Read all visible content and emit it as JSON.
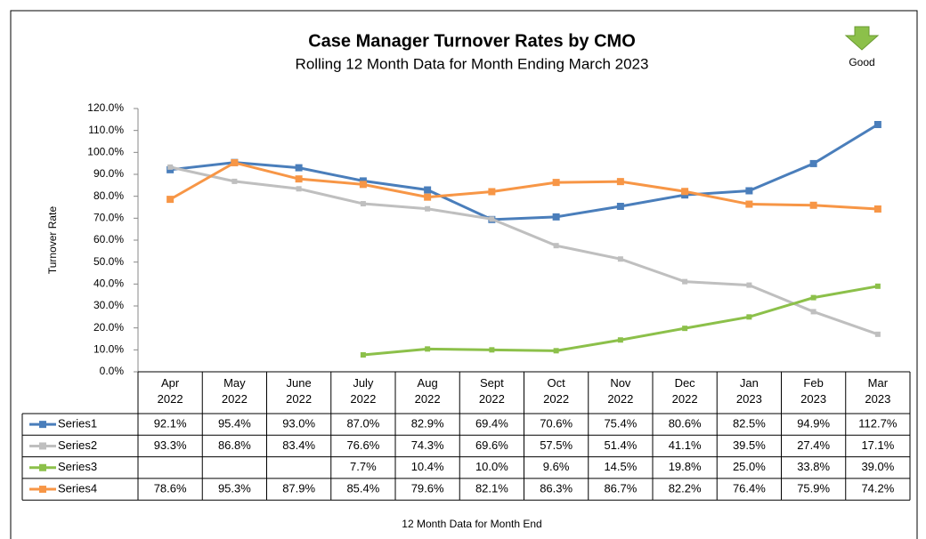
{
  "chart_data": {
    "type": "line",
    "title": "Case Manager Turnover Rates by CMO",
    "subtitle": "Rolling 12 Month Data for Month Ending March 2023",
    "annotation": "Good",
    "y_label": "Turnover Rate",
    "x_label": "12 Month Data for Month End",
    "categories": [
      "Apr\n2022",
      "May\n2022",
      "June\n2022",
      "July\n2022",
      "Aug\n2022",
      "Sept\n2022",
      "Oct\n2022",
      "Nov\n2022",
      "Dec\n2022",
      "Jan\n2023",
      "Feb\n2023",
      "Mar\n2023"
    ],
    "ylim": [
      0,
      120
    ],
    "yticks": [
      {
        "value": 0,
        "label": "0.0%"
      },
      {
        "value": 10,
        "label": "10.0%"
      },
      {
        "value": 20,
        "label": "20.0%"
      },
      {
        "value": 30,
        "label": "30.0%"
      },
      {
        "value": 40,
        "label": "40.0%"
      },
      {
        "value": 50,
        "label": "50.0%"
      },
      {
        "value": 60,
        "label": "60.0%"
      },
      {
        "value": 70,
        "label": "70.0%"
      },
      {
        "value": 80,
        "label": "80.0%"
      },
      {
        "value": 90,
        "label": "90.0%"
      },
      {
        "value": 100,
        "label": "100.0%"
      },
      {
        "value": 110,
        "label": "110.0%"
      },
      {
        "value": 120,
        "label": "120.0%"
      }
    ],
    "grid": false,
    "series": [
      {
        "name": "Series1",
        "color": "#4a7ebb",
        "values": [
          92.1,
          95.4,
          93.0,
          87.0,
          82.9,
          69.4,
          70.6,
          75.4,
          80.6,
          82.5,
          94.9,
          112.7
        ],
        "value_labels": [
          "92.1%",
          "95.4%",
          "93.0%",
          "87.0%",
          "82.9%",
          "69.4%",
          "70.6%",
          "75.4%",
          "80.6%",
          "82.5%",
          "94.9%",
          "112.7%"
        ]
      },
      {
        "name": "Series2",
        "color": "#bfbfbf",
        "values": [
          93.3,
          86.8,
          83.4,
          76.6,
          74.3,
          69.6,
          57.5,
          51.4,
          41.1,
          39.5,
          27.4,
          17.1
        ],
        "value_labels": [
          "93.3%",
          "86.8%",
          "83.4%",
          "76.6%",
          "74.3%",
          "69.6%",
          "57.5%",
          "51.4%",
          "41.1%",
          "39.5%",
          "27.4%",
          "17.1%"
        ]
      },
      {
        "name": "Series3",
        "color": "#8cc04a",
        "values": [
          null,
          null,
          null,
          7.7,
          10.4,
          10.0,
          9.6,
          14.5,
          19.8,
          25.0,
          33.8,
          39.0
        ],
        "value_labels": [
          null,
          null,
          null,
          "7.7%",
          "10.4%",
          "10.0%",
          "9.6%",
          "14.5%",
          "19.8%",
          "25.0%",
          "33.8%",
          "39.0%"
        ]
      },
      {
        "name": "Series4",
        "color": "#f79646",
        "values": [
          78.6,
          95.3,
          87.9,
          85.4,
          79.6,
          82.1,
          86.3,
          86.7,
          82.2,
          76.4,
          75.9,
          74.2
        ],
        "value_labels": [
          "78.6%",
          "95.3%",
          "87.9%",
          "85.4%",
          "79.6%",
          "82.1%",
          "86.3%",
          "86.7%",
          "82.2%",
          "76.4%",
          "75.9%",
          "74.2%"
        ]
      }
    ]
  }
}
